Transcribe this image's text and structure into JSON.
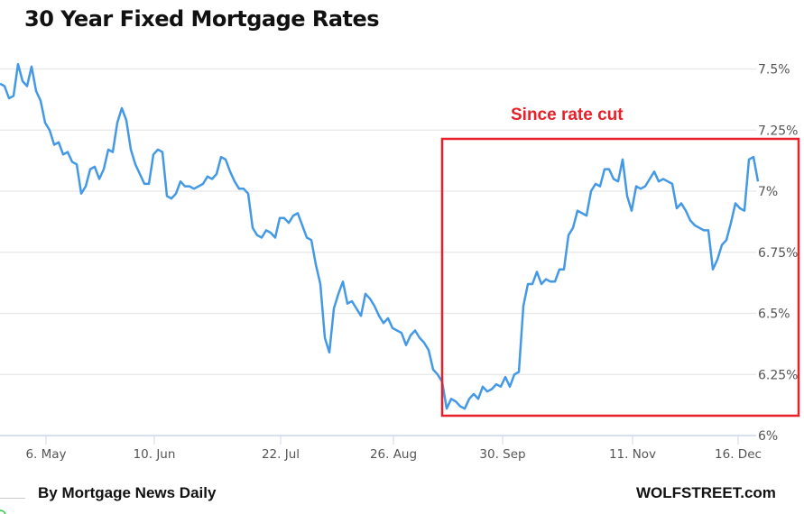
{
  "chart_data": {
    "type": "line",
    "title": "30 Year Fixed Mortgage Rates",
    "xlabel": "",
    "ylabel": "",
    "ylim": [
      6,
      7.5
    ],
    "y_ticks": [
      6,
      6.25,
      6.5,
      6.75,
      7,
      7.25,
      7.5
    ],
    "y_tick_labels": [
      "6%",
      "6.25%",
      "6.5%",
      "6.75%",
      "7%",
      "7.25%",
      "7.5%"
    ],
    "x_ticks": [
      {
        "index": 10.2,
        "label": "6. May"
      },
      {
        "index": 34.2,
        "label": "10. Jun"
      },
      {
        "index": 62.2,
        "label": "22. Jul"
      },
      {
        "index": 87.2,
        "label": "26. Aug"
      },
      {
        "index": 111.4,
        "label": "30. Sep"
      },
      {
        "index": 140.2,
        "label": "11. Nov"
      },
      {
        "index": 163.6,
        "label": "16. Dec"
      }
    ],
    "grid": true,
    "series": [
      {
        "name": "30 Year Fixed Mortgage Rate (%)",
        "color": "#4499e6",
        "values": [
          7.44,
          7.43,
          7.38,
          7.39,
          7.52,
          7.45,
          7.43,
          7.51,
          7.41,
          7.37,
          7.28,
          7.25,
          7.19,
          7.2,
          7.15,
          7.16,
          7.12,
          7.11,
          6.99,
          7.02,
          7.09,
          7.1,
          7.05,
          7.09,
          7.17,
          7.16,
          7.28,
          7.34,
          7.29,
          7.17,
          7.11,
          7.07,
          7.03,
          7.03,
          7.15,
          7.17,
          7.16,
          6.98,
          6.97,
          6.99,
          7.04,
          7.02,
          7.02,
          7.01,
          7.02,
          7.03,
          7.06,
          7.05,
          7.07,
          7.14,
          7.13,
          7.08,
          7.04,
          7.01,
          7.01,
          6.99,
          6.85,
          6.82,
          6.81,
          6.84,
          6.83,
          6.81,
          6.89,
          6.89,
          6.87,
          6.9,
          6.91,
          6.86,
          6.81,
          6.8,
          6.7,
          6.62,
          6.4,
          6.34,
          6.52,
          6.58,
          6.63,
          6.54,
          6.55,
          6.52,
          6.49,
          6.58,
          6.56,
          6.53,
          6.49,
          6.46,
          6.48,
          6.44,
          6.43,
          6.42,
          6.37,
          6.41,
          6.43,
          6.4,
          6.38,
          6.35,
          6.27,
          6.25,
          6.22,
          6.11,
          6.15,
          6.14,
          6.12,
          6.11,
          6.15,
          6.17,
          6.15,
          6.2,
          6.18,
          6.19,
          6.21,
          6.2,
          6.24,
          6.2,
          6.25,
          6.26,
          6.53,
          6.62,
          6.62,
          6.67,
          6.62,
          6.64,
          6.63,
          6.63,
          6.68,
          6.68,
          6.82,
          6.85,
          6.92,
          6.91,
          6.9,
          7.0,
          7.03,
          7.02,
          7.09,
          7.09,
          7.05,
          7.04,
          7.13,
          6.98,
          6.92,
          7.02,
          7.01,
          7.02,
          7.05,
          7.08,
          7.04,
          7.05,
          7.04,
          7.03,
          6.93,
          6.95,
          6.92,
          6.88,
          6.86,
          6.85,
          6.84,
          6.84,
          6.68,
          6.72,
          6.78,
          6.8,
          6.87,
          6.95,
          6.93,
          6.92,
          7.13,
          7.14,
          7.04
        ]
      }
    ],
    "annotation": {
      "text": "Since rate cut",
      "color": "#e8202a",
      "highlight_from_index": 98
    }
  },
  "footer": {
    "source": "By Mortgage News Daily",
    "brand": "WOLFSTREET.com"
  }
}
